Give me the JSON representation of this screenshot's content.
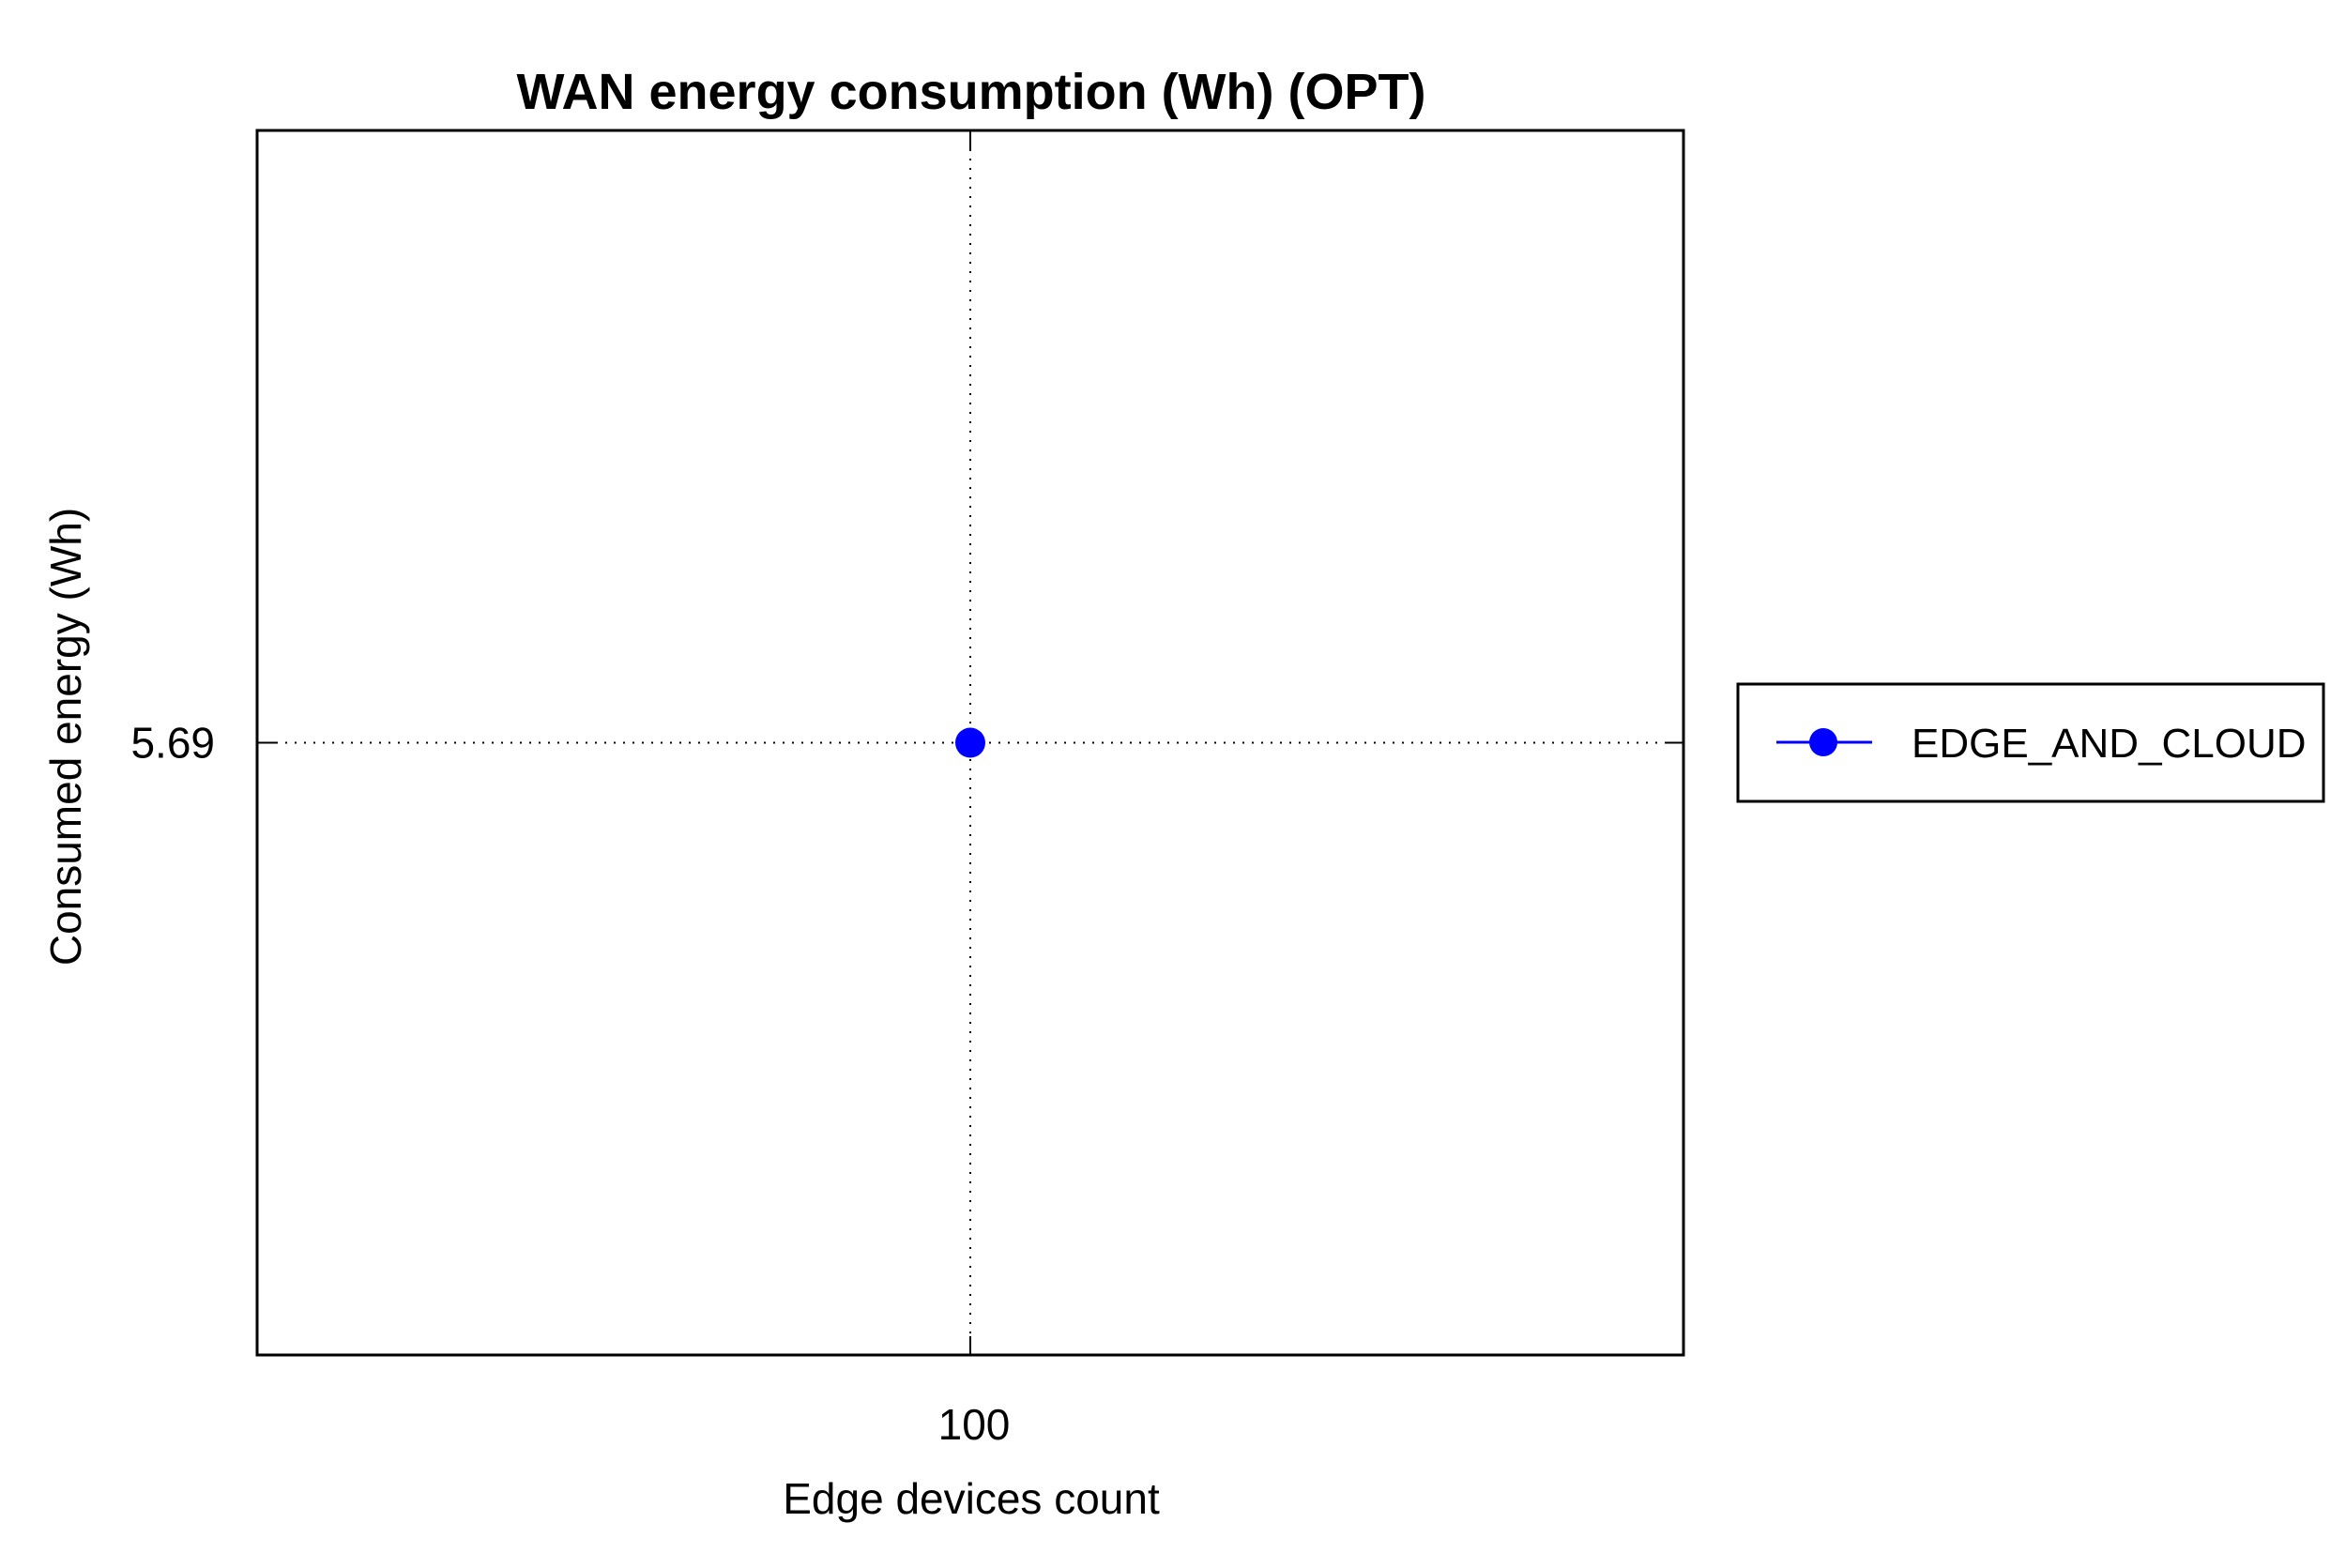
{
  "chart_data": {
    "type": "line",
    "title": "WAN energy consumption (Wh) (OPT)",
    "xlabel": "Edge devices count",
    "ylabel": "Consumed energy (Wh)",
    "x_ticks": [
      "100"
    ],
    "y_ticks": [
      "5.69"
    ],
    "x_categories": [
      100
    ],
    "series": [
      {
        "name": "EDGE_AND_CLOUD",
        "x": [
          100
        ],
        "y": [
          5.69
        ],
        "color": "#0000ff",
        "marker": "circle"
      }
    ],
    "grid": true,
    "grid_style": "dotted",
    "legend": {
      "position": "right",
      "entries": [
        "EDGE_AND_CLOUD"
      ]
    }
  }
}
